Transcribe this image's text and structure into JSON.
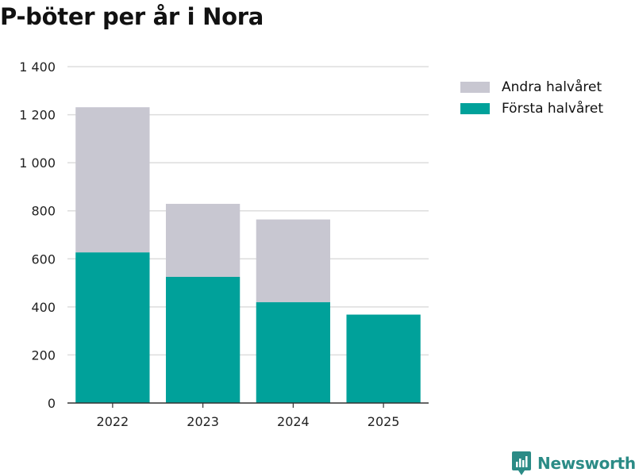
{
  "chart_data": {
    "type": "bar",
    "stacked": true,
    "title": "P-böter per år i Nora",
    "categories": [
      "2022",
      "2023",
      "2024",
      "2025"
    ],
    "series": [
      {
        "name": "Första halvåret",
        "color": "#00a19a",
        "values": [
          627,
          525,
          420,
          368
        ]
      },
      {
        "name": "Andra halvåret",
        "color": "#c8c7d1",
        "values": [
          604,
          304,
          344,
          0
        ]
      }
    ],
    "legend_order": [
      "Andra halvåret",
      "Första halvåret"
    ],
    "ylim": [
      0,
      1400
    ],
    "yticks": [
      0,
      200,
      400,
      600,
      800,
      1000,
      1200,
      1400
    ],
    "ytick_labels": [
      "0",
      "200",
      "400",
      "600",
      "800",
      "1 000",
      "1 200",
      "1 400"
    ],
    "grid": true,
    "legend_position": "top-right",
    "xlabel": "",
    "ylabel": ""
  },
  "brand": {
    "name": "Newsworthy",
    "color": "#2b8b86"
  }
}
